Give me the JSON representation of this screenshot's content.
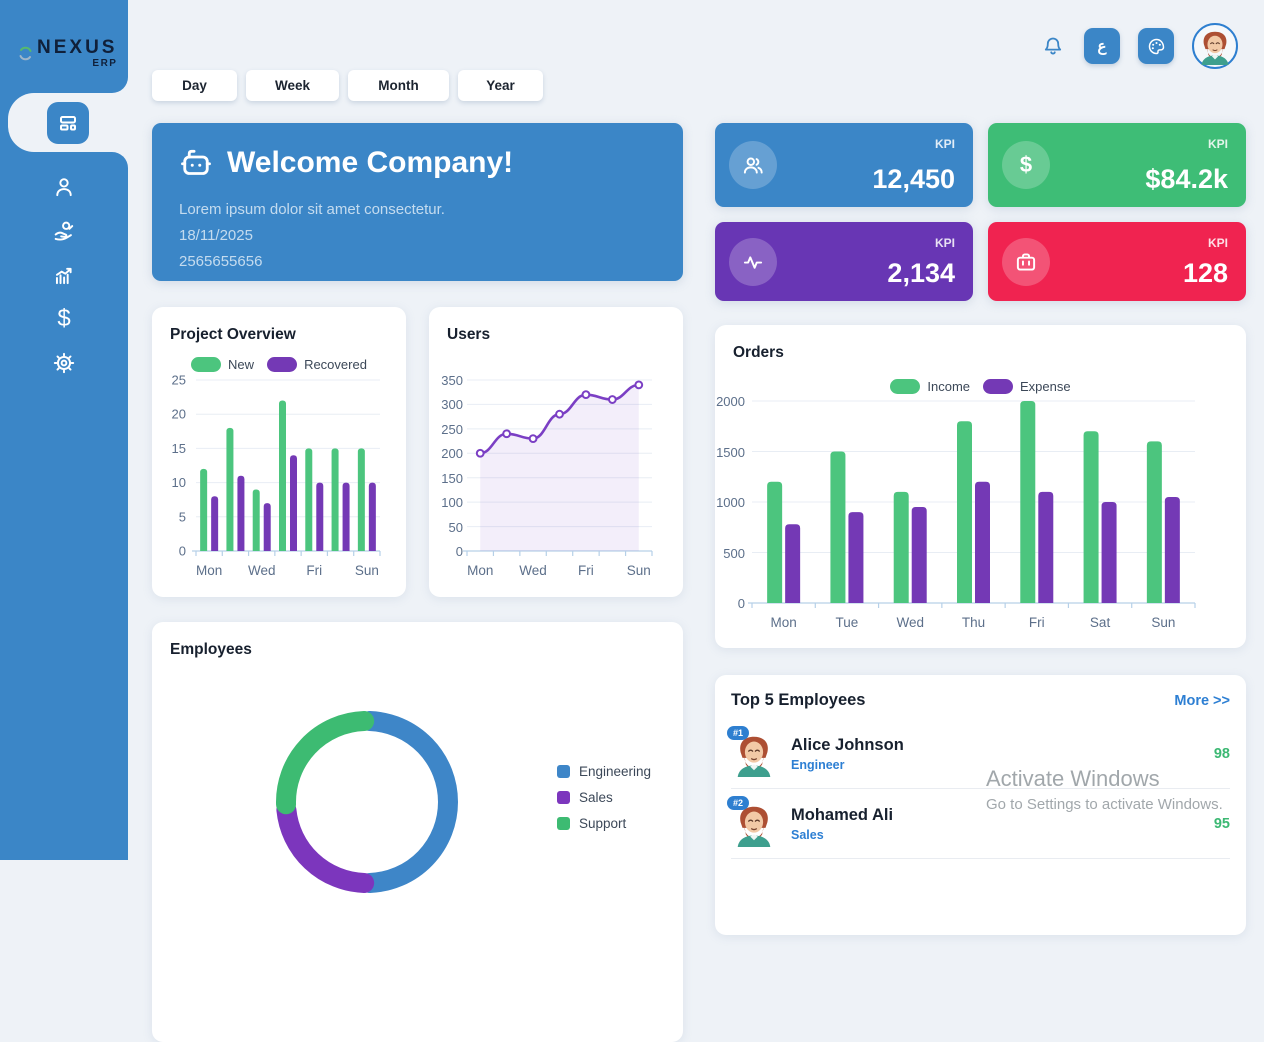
{
  "sidebar": {
    "brand": {
      "name": "NEXUS",
      "suffix": "ERP"
    },
    "items": [
      {
        "id": "dashboard",
        "active": true
      },
      {
        "id": "users",
        "active": false
      },
      {
        "id": "payments",
        "active": false
      },
      {
        "id": "analytics",
        "active": false
      },
      {
        "id": "finance",
        "active": false
      },
      {
        "id": "settings",
        "active": false
      }
    ]
  },
  "topbar": {
    "lang_label": "ع"
  },
  "filters": {
    "tabs": [
      "Day",
      "Week",
      "Month",
      "Year"
    ]
  },
  "welcome": {
    "title": "Welcome Company!",
    "subtitle": "Lorem ipsum dolor sit amet consectetur.",
    "date": "18/11/2025",
    "phone": "2565655656"
  },
  "kpis": [
    {
      "label": "KPI",
      "value": "12,450",
      "color": "#3b86c7",
      "icon": "users-icon"
    },
    {
      "label": "KPI",
      "value": "$84.2k",
      "color": "#3ebd76",
      "icon": "dollar-icon"
    },
    {
      "label": "KPI",
      "value": "2,134",
      "color": "#6836b4",
      "icon": "activity-icon"
    },
    {
      "label": "KPI",
      "value": "128",
      "color": "#f02350",
      "icon": "briefcase-icon"
    }
  ],
  "cards": {
    "project_overview": {
      "title": "Project Overview",
      "chart": {
        "type": "bar",
        "categories": [
          "Mon",
          "Tue",
          "Wed",
          "Thu",
          "Fri",
          "Sat",
          "Sun"
        ],
        "xticks_shown": [
          "Mon",
          "Wed",
          "Fri",
          "Sun"
        ],
        "yticks": [
          0,
          5,
          10,
          15,
          20,
          25
        ],
        "ymax": 25,
        "series": [
          {
            "name": "New",
            "color": "#4cc57e",
            "values": [
              12,
              18,
              9,
              22,
              15,
              15,
              15
            ]
          },
          {
            "name": "Recovered",
            "color": "#7439b5",
            "values": [
              8,
              11,
              7,
              14,
              10,
              10,
              10
            ]
          }
        ]
      }
    },
    "users": {
      "title": "Users",
      "chart": {
        "type": "line",
        "categories": [
          "Mon",
          "Tue",
          "Wed",
          "Thu",
          "Fri",
          "Sat",
          "Sun"
        ],
        "xticks_shown": [
          "Mon",
          "Wed",
          "Fri",
          "Sun"
        ],
        "yticks": [
          0,
          50,
          100,
          150,
          200,
          250,
          300,
          350
        ],
        "ymax": 350,
        "series": [
          {
            "name": "Users",
            "color": "#7b3fc4",
            "fill": "rgba(124,63,196,0.09)",
            "values": [
              200,
              240,
              230,
              280,
              320,
              310,
              340
            ]
          }
        ]
      }
    },
    "orders": {
      "title": "Orders",
      "chart": {
        "type": "bar",
        "categories": [
          "Mon",
          "Tue",
          "Wed",
          "Thu",
          "Fri",
          "Sat",
          "Sun"
        ],
        "xticks_shown": [
          "Mon",
          "Tue",
          "Wed",
          "Thu",
          "Fri",
          "Sat",
          "Sun"
        ],
        "yticks": [
          0,
          500,
          1000,
          1500,
          2000
        ],
        "ymax": 2000,
        "series": [
          {
            "name": "Income",
            "color": "#4cc57e",
            "values": [
              1200,
              1500,
              1100,
              1800,
              2000,
              1700,
              1600
            ]
          },
          {
            "name": "Expense",
            "color": "#7439b5",
            "values": [
              780,
              900,
              950,
              1200,
              1100,
              1000,
              1050
            ]
          }
        ]
      }
    },
    "employees": {
      "title": "Employees",
      "chart": {
        "type": "donut",
        "segments": [
          {
            "label": "Engineering",
            "color": "#3e86c8",
            "value": 50
          },
          {
            "label": "Sales",
            "color": "#7c36bd",
            "value": 24
          },
          {
            "label": "Support",
            "color": "#3dbb72",
            "value": 26
          }
        ]
      }
    },
    "top_employees": {
      "title": "Top 5 Employees",
      "more_label": "More >>",
      "rows": [
        {
          "rank": "#1",
          "name": "Alice Johnson",
          "role": "Engineer",
          "score": "98"
        },
        {
          "rank": "#2",
          "name": "Mohamed Ali",
          "role": "Sales",
          "score": "95"
        }
      ]
    }
  },
  "watermark": {
    "line1": "Activate Windows",
    "line2": "Go to Settings to activate Windows."
  }
}
